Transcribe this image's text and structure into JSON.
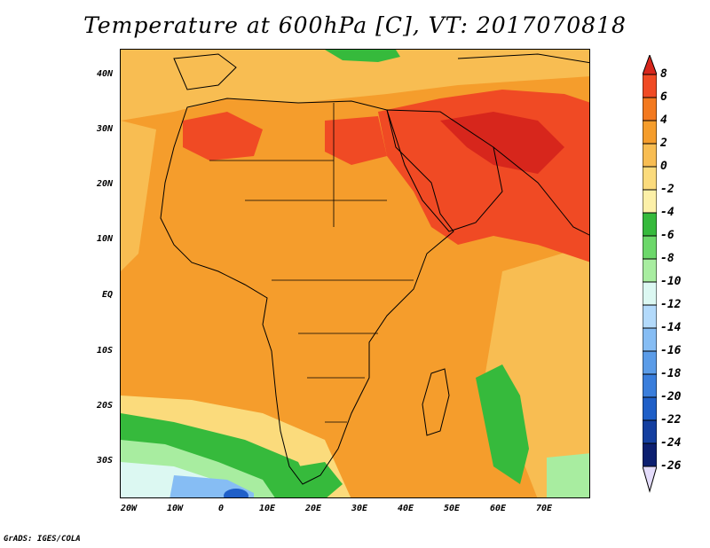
{
  "title": "Temperature at 600hPa [C], VT: 2017070818",
  "credit": "GrADS: IGES/COLA",
  "lat_ticks": [
    "40N",
    "30N",
    "20N",
    "10N",
    "EQ",
    "10S",
    "20S",
    "30S"
  ],
  "lon_ticks": [
    "20W",
    "10W",
    "0",
    "10E",
    "20E",
    "30E",
    "40E",
    "50E",
    "60E",
    "70E"
  ],
  "colorbar": {
    "levels": [
      "8",
      "6",
      "4",
      "2",
      "0",
      "-2",
      "-4",
      "-6",
      "-8",
      "-10",
      "-12",
      "-14",
      "-16",
      "-18",
      "-20",
      "-22",
      "-24",
      "-26"
    ],
    "colors": [
      "#d7261c",
      "#f04a24",
      "#f3791f",
      "#f59d2c",
      "#f8bd52",
      "#fbdb7c",
      "#fcf0a8",
      "#36ba3c",
      "#6cd86a",
      "#a8eda0",
      "#dcf8f2",
      "#b3dafb",
      "#86bdf4",
      "#5b9ce8",
      "#3a7edc",
      "#1f5fc8",
      "#143fa0",
      "#0c1f70",
      "#e4dcfb"
    ]
  },
  "map": {
    "region": "Africa, Arabian Peninsula and western South Asia",
    "lon_range": [
      -22,
      80
    ],
    "lat_range": [
      -36,
      45
    ],
    "projection": "latlon"
  }
}
